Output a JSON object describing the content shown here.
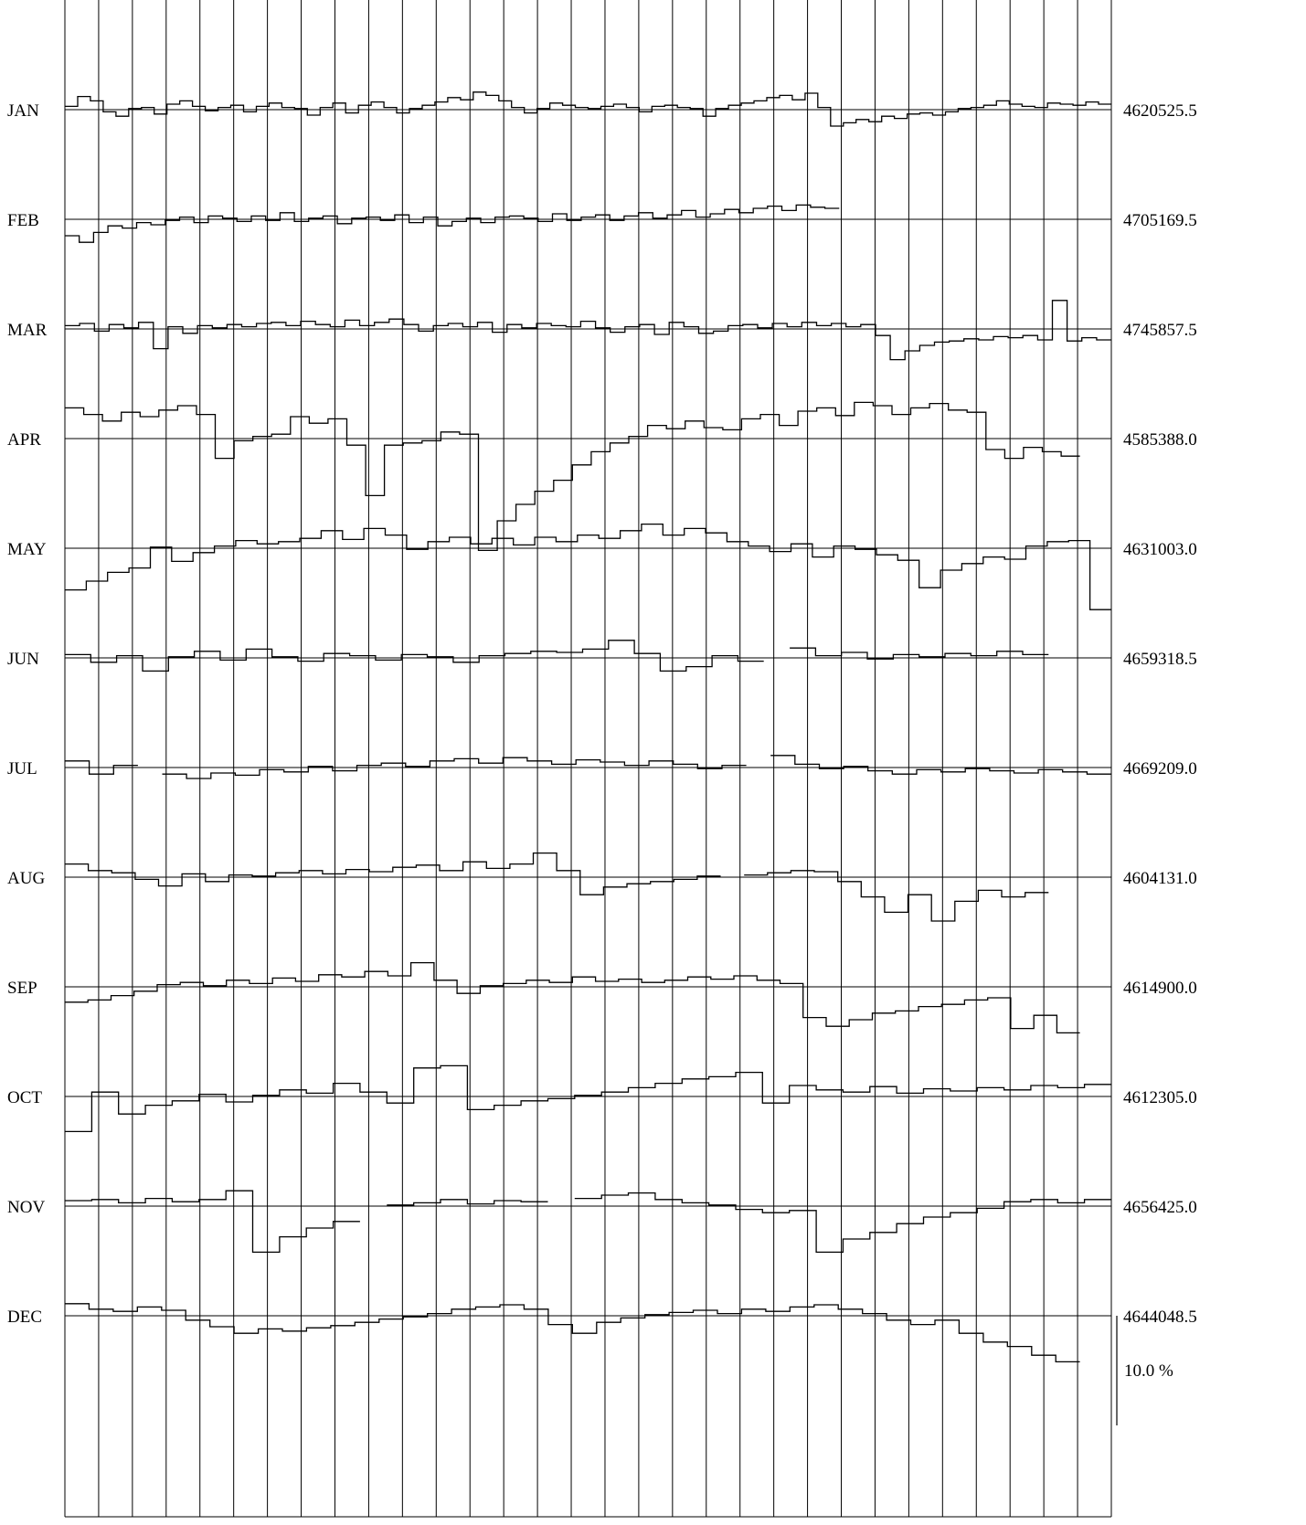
{
  "chart_data": {
    "type": "line",
    "title": "",
    "xlabel": "",
    "ylabel": "",
    "columns": 31,
    "scale_bar": {
      "label": "10.0 %",
      "value_percent": 10.0
    },
    "colors": {
      "line": "#000000",
      "grid": "#000000",
      "background": "#ffffff"
    },
    "rows": [
      {
        "month": "JAN",
        "baseline": "4620525.5",
        "extent": 1.0,
        "points": [
          0.3,
          1.2,
          0.8,
          -0.2,
          -0.6,
          0.1,
          0.2,
          -0.4,
          0.5,
          0.8,
          0.3,
          -0.1,
          0.2,
          0.4,
          -0.2,
          0.3,
          0.6,
          0.2,
          0.1,
          -0.5,
          0.2,
          0.6,
          -0.3,
          0.4,
          0.7,
          0.2,
          -0.3,
          0.1,
          0.4,
          0.7,
          1.1,
          0.9,
          1.6,
          1.3,
          0.8,
          0.2,
          -0.3,
          0.1,
          0.6,
          0.4,
          0.2,
          0.1,
          0.3,
          0.5,
          0.2,
          -0.2,
          0.3,
          0.4,
          0.2,
          0.1,
          -0.6,
          0.1,
          0.4,
          0.6,
          0.8,
          1.1,
          1.3,
          0.9,
          1.5,
          0.2,
          -1.5,
          -1.2,
          -0.9,
          -1.1,
          -0.6,
          -0.8,
          -0.4,
          -0.3,
          -0.5,
          -0.2,
          0.1,
          0.2,
          0.4,
          0.8,
          0.5,
          0.3,
          0.2,
          0.6,
          0.5,
          0.4,
          0.7,
          0.5
        ]
      },
      {
        "month": "FEB",
        "baseline": "4705169.5",
        "extent": 0.74,
        "points": [
          -1.5,
          -2.1,
          -1.2,
          -0.6,
          -0.8,
          -0.3,
          -0.5,
          -0.1,
          0.2,
          -0.3,
          0.3,
          0.1,
          -0.2,
          0.3,
          -0.1,
          0.6,
          -0.2,
          0.1,
          0.3,
          -0.4,
          0.1,
          0.2,
          -0.1,
          0.4,
          -0.3,
          0.2,
          -0.6,
          -0.2,
          0.1,
          -0.3,
          0.2,
          0.3,
          0.1,
          -0.2,
          0.5,
          -0.1,
          0.2,
          0.4,
          -0.1,
          0.3,
          0.6,
          0.1,
          0.4,
          0.8,
          0.2,
          0.5,
          0.9,
          0.6,
          1.0,
          1.2,
          0.8,
          1.3,
          1.1,
          1.0
        ]
      },
      {
        "month": "MAR",
        "baseline": "4745857.5",
        "extent": 1.0,
        "points": [
          0.3,
          0.5,
          -0.2,
          0.4,
          0.1,
          0.6,
          -1.8,
          0.2,
          -0.4,
          0.3,
          0.1,
          0.4,
          0.2,
          0.5,
          0.6,
          0.3,
          0.7,
          0.4,
          0.2,
          0.8,
          0.3,
          0.6,
          0.9,
          0.4,
          -0.2,
          0.3,
          0.5,
          0.2,
          0.6,
          -0.3,
          0.4,
          0.1,
          0.5,
          0.3,
          0.2,
          0.7,
          0.1,
          -0.3,
          0.2,
          0.4,
          -0.5,
          0.6,
          0.2,
          -0.4,
          -0.2,
          0.3,
          0.4,
          0.1,
          0.5,
          0.2,
          0.6,
          0.3,
          0.5,
          0.2,
          0.4,
          -0.6,
          -2.8,
          -2.0,
          -1.5,
          -1.2,
          -1.1,
          -0.9,
          -1.0,
          -0.7,
          -0.8,
          -0.6,
          -1.0,
          2.6,
          -1.1,
          -0.8,
          -1.0
        ]
      },
      {
        "month": "APR",
        "baseline": "4585388.0",
        "extent": 0.97,
        "points": [
          2.8,
          2.2,
          1.6,
          2.4,
          2.0,
          2.6,
          3.0,
          2.2,
          -1.8,
          -0.2,
          0.2,
          0.4,
          2.0,
          1.4,
          1.8,
          -0.6,
          -5.2,
          -0.6,
          -0.4,
          -0.2,
          0.6,
          0.4,
          -10.2,
          -7.5,
          -6.0,
          -4.8,
          -3.8,
          -2.4,
          -1.2,
          -0.4,
          0.2,
          1.2,
          0.9,
          1.6,
          1.0,
          0.8,
          1.8,
          2.2,
          1.2,
          2.5,
          2.8,
          2.1,
          3.3,
          3.0,
          2.2,
          2.8,
          3.2,
          2.6,
          2.4,
          -1.0,
          -1.8,
          -0.8,
          -1.2,
          -1.6
        ]
      },
      {
        "month": "MAY",
        "baseline": "4631003.0",
        "extent": 1.0,
        "points": [
          -3.8,
          -3.0,
          -2.2,
          -1.8,
          0.1,
          -1.2,
          -0.4,
          0.2,
          0.7,
          0.4,
          0.6,
          0.9,
          1.6,
          0.8,
          1.8,
          1.2,
          -0.1,
          0.6,
          1.0,
          0.4,
          0.9,
          0.3,
          1.0,
          0.6,
          1.2,
          0.9,
          1.6,
          2.2,
          1.2,
          1.8,
          1.4,
          0.6,
          0.2,
          -0.3,
          0.4,
          -0.8,
          0.2,
          -0.1,
          -0.6,
          -1.1,
          -3.6,
          -2.0,
          -1.4,
          -0.8,
          -1.0,
          0.2,
          0.6,
          0.7,
          -5.6
        ]
      },
      {
        "month": "JUN",
        "baseline": "4659318.5",
        "extent": 0.94,
        "points": [
          0.3,
          -0.4,
          0.2,
          -1.2,
          0.1,
          0.6,
          -0.2,
          0.8,
          0.1,
          -0.3,
          0.4,
          0.2,
          -0.2,
          0.3,
          0.1,
          -0.4,
          0.2,
          0.4,
          0.6,
          0.5,
          0.8,
          1.6,
          0.4,
          -1.2,
          -0.8,
          0.2,
          -0.3,
          null,
          0.9,
          0.2,
          0.5,
          -0.1,
          0.3,
          0.1,
          0.4,
          0.2,
          0.6,
          0.3
        ]
      },
      {
        "month": "JUL",
        "baseline": "4669209.0",
        "extent": 1.0,
        "points": [
          0.6,
          -0.6,
          0.2,
          null,
          -0.6,
          -1.0,
          -0.5,
          -0.7,
          -0.2,
          -0.4,
          0.1,
          -0.3,
          0.2,
          0.4,
          0.1,
          0.6,
          0.8,
          0.4,
          0.9,
          0.6,
          0.3,
          0.7,
          0.5,
          0.2,
          0.6,
          0.3,
          -0.1,
          0.2,
          null,
          1.1,
          0.3,
          -0.1,
          0.1,
          -0.3,
          -0.6,
          -0.2,
          -0.4,
          -0.1,
          -0.3,
          -0.5,
          -0.2,
          -0.4,
          -0.6
        ]
      },
      {
        "month": "AUG",
        "baseline": "4604131.0",
        "extent": 0.94,
        "points": [
          1.2,
          0.6,
          0.4,
          -0.2,
          -0.8,
          0.3,
          -0.4,
          0.2,
          0.1,
          0.4,
          0.6,
          0.3,
          0.7,
          0.5,
          0.9,
          1.1,
          0.6,
          1.4,
          0.8,
          1.2,
          2.2,
          0.6,
          -1.6,
          -0.9,
          -0.6,
          -0.4,
          -0.2,
          0.1,
          null,
          0.2,
          0.4,
          0.6,
          0.5,
          -0.4,
          -1.8,
          -3.2,
          -1.6,
          -4.0,
          -2.2,
          -1.2,
          -1.8,
          -1.4
        ]
      },
      {
        "month": "SEP",
        "baseline": "4614900.0",
        "extent": 0.97,
        "points": [
          -1.4,
          -1.2,
          -0.8,
          -0.4,
          0.2,
          0.4,
          0.1,
          0.6,
          0.3,
          0.8,
          0.5,
          1.1,
          0.9,
          1.4,
          1.0,
          2.2,
          0.6,
          -0.6,
          0.1,
          0.3,
          0.6,
          0.4,
          0.9,
          0.5,
          0.7,
          0.4,
          0.6,
          0.9,
          0.7,
          1.0,
          0.6,
          0.3,
          -2.8,
          -3.6,
          -3.0,
          -2.4,
          -2.2,
          -1.8,
          -1.6,
          -1.2,
          -1.0,
          -3.8,
          -2.6,
          -4.2
        ]
      },
      {
        "month": "OCT",
        "baseline": "4612305.0",
        "extent": 1.0,
        "points": [
          -3.2,
          0.4,
          -1.6,
          -0.8,
          -0.4,
          0.2,
          -0.5,
          0.1,
          0.6,
          0.3,
          1.2,
          0.4,
          -0.6,
          2.6,
          2.8,
          -1.2,
          -0.8,
          -0.4,
          -0.2,
          0.1,
          0.4,
          0.8,
          1.2,
          1.6,
          1.8,
          2.2,
          -0.6,
          1.0,
          0.6,
          0.4,
          0.9,
          0.3,
          0.7,
          0.5,
          0.8,
          0.6,
          1.0,
          0.8,
          1.1
        ]
      },
      {
        "month": "NOV",
        "baseline": "4656425.0",
        "extent": 1.0,
        "points": [
          0.5,
          0.6,
          0.3,
          0.7,
          0.4,
          0.6,
          1.4,
          -4.2,
          -2.8,
          -2.0,
          -1.4,
          null,
          0.1,
          0.3,
          0.6,
          0.2,
          0.5,
          0.4,
          null,
          0.7,
          1.0,
          1.2,
          0.6,
          0.3,
          0.1,
          -0.3,
          -0.6,
          -0.4,
          -4.2,
          -3.0,
          -2.4,
          -1.6,
          -1.0,
          -0.6,
          -0.2,
          0.4,
          0.6,
          0.3,
          0.6
        ]
      },
      {
        "month": "DEC",
        "baseline": "4644048.5",
        "extent": 0.97,
        "points": [
          1.1,
          0.6,
          0.4,
          0.8,
          0.5,
          -0.4,
          -1.0,
          -1.6,
          -1.2,
          -1.4,
          -1.1,
          -0.9,
          -0.6,
          -0.3,
          -0.1,
          0.2,
          0.6,
          0.8,
          1.0,
          0.6,
          -0.8,
          -1.6,
          -0.6,
          -0.2,
          0.1,
          0.3,
          0.5,
          0.2,
          0.6,
          0.4,
          0.8,
          1.0,
          0.6,
          0.2,
          -0.4,
          -0.8,
          -0.4,
          -1.6,
          -2.4,
          -2.8,
          -3.6,
          -4.2
        ]
      }
    ]
  }
}
